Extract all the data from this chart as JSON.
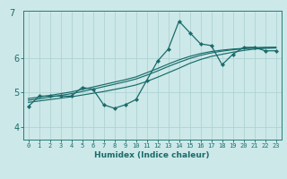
{
  "xlabel": "Humidex (Indice chaleur)",
  "bg_color": "#cce8e8",
  "grid_color": "#aacfcf",
  "line_color": "#1a6b6b",
  "spine_color": "#2a7a7a",
  "x_ticks": [
    0,
    1,
    2,
    3,
    4,
    5,
    6,
    7,
    8,
    9,
    10,
    11,
    12,
    13,
    14,
    15,
    16,
    17,
    18,
    19,
    20,
    21,
    22,
    23
  ],
  "y_ticks": [
    4,
    5,
    6
  ],
  "ylim": [
    3.65,
    7.35
  ],
  "xlim": [
    -0.5,
    23.5
  ],
  "line1_y": [
    4.6,
    4.9,
    4.9,
    4.9,
    4.9,
    5.15,
    5.1,
    4.65,
    4.55,
    4.65,
    4.8,
    5.35,
    5.9,
    6.25,
    7.05,
    6.72,
    6.4,
    6.35,
    5.8,
    6.1,
    6.3,
    6.3,
    6.2,
    6.2
  ],
  "line2_y": [
    4.72,
    4.76,
    4.8,
    4.84,
    4.88,
    4.93,
    4.98,
    5.03,
    5.09,
    5.15,
    5.22,
    5.32,
    5.44,
    5.57,
    5.7,
    5.84,
    5.95,
    6.04,
    6.1,
    6.16,
    6.21,
    6.25,
    6.27,
    6.28
  ],
  "line3_y": [
    4.78,
    4.82,
    4.87,
    4.92,
    4.97,
    5.03,
    5.1,
    5.17,
    5.24,
    5.31,
    5.39,
    5.5,
    5.62,
    5.75,
    5.87,
    5.98,
    6.07,
    6.14,
    6.19,
    6.23,
    6.26,
    6.28,
    6.29,
    6.3
  ],
  "line4_y": [
    4.83,
    4.87,
    4.92,
    4.97,
    5.02,
    5.09,
    5.16,
    5.23,
    5.3,
    5.37,
    5.45,
    5.57,
    5.69,
    5.82,
    5.94,
    6.04,
    6.12,
    6.18,
    6.22,
    6.25,
    6.27,
    6.29,
    6.3,
    6.3
  ]
}
